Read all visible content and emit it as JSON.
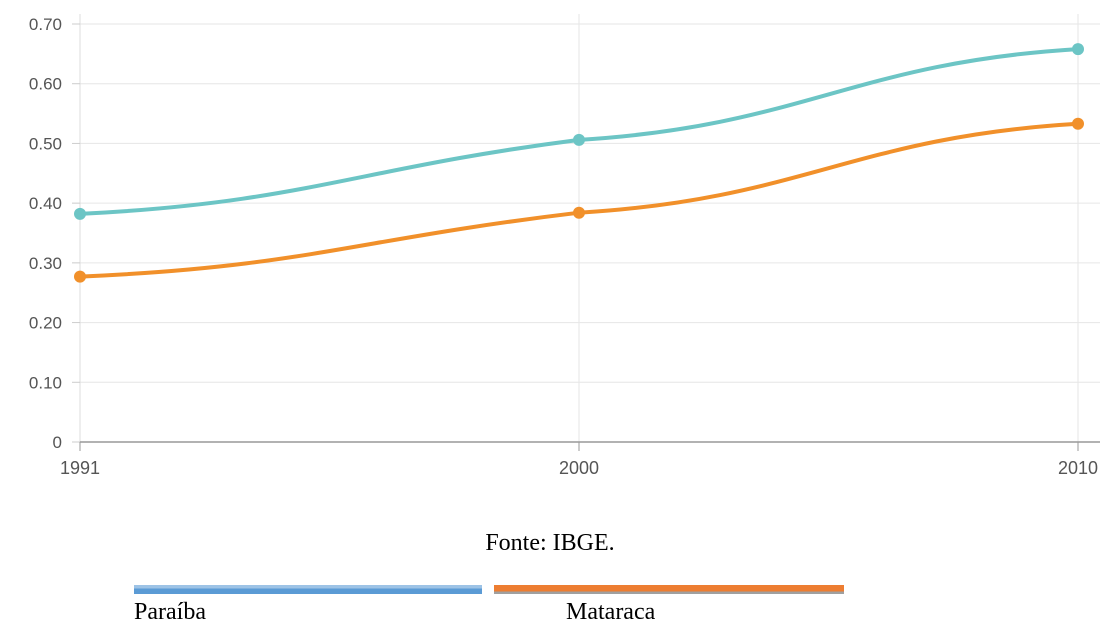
{
  "chart_data": {
    "type": "line",
    "x": [
      "1991",
      "2000",
      "2010"
    ],
    "yticks": [
      "0",
      "0.10",
      "0.20",
      "0.30",
      "0.40",
      "0.50",
      "0.60",
      "0.70"
    ],
    "ylim": [
      0,
      0.7
    ],
    "grid": true,
    "series": [
      {
        "key": "paraiba",
        "values": [
          0.382,
          0.506,
          0.658
        ],
        "color": "#6cc5c5"
      },
      {
        "key": "mataraca",
        "values": [
          0.277,
          0.384,
          0.533
        ],
        "color": "#f1902a"
      }
    ]
  },
  "source": "Fonte: IBGE.",
  "legend": [
    {
      "label": "Paraíba",
      "color": "#5b9bd5"
    },
    {
      "label": "Mataraca",
      "color": "#ed7d31"
    }
  ]
}
